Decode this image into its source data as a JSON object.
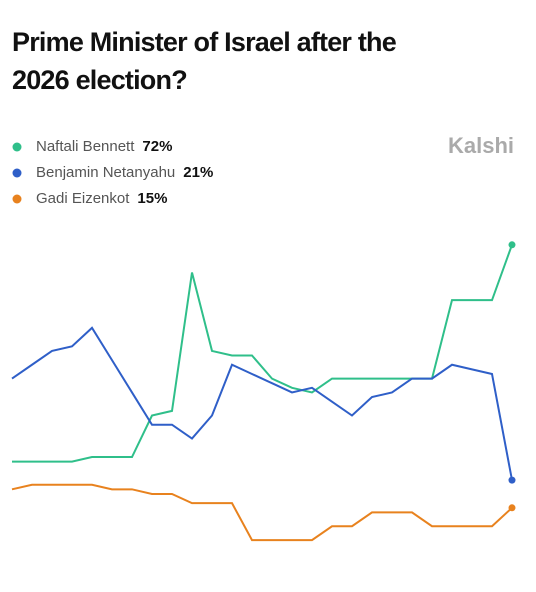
{
  "chart_data": {
    "type": "line",
    "title": "Prime Minister of Israel after the",
    "title_line2": "2026 election?",
    "brand": "Kalshi",
    "series": [
      {
        "name": "Naftali Bennett",
        "legend_value": "72%",
        "color": "#2fbf8a",
        "values": [
          25,
          25,
          25,
          25,
          26,
          26,
          26,
          35,
          36,
          66,
          49,
          48,
          48,
          43,
          41,
          40,
          43,
          43,
          43,
          43,
          43,
          43,
          60,
          60,
          60,
          72
        ]
      },
      {
        "name": "Benjamin Netanyahu",
        "legend_value": "21%",
        "color": "#2f5fc8",
        "values": [
          43,
          46,
          49,
          50,
          54,
          47,
          40,
          33,
          33,
          30,
          35,
          46,
          44,
          42,
          40,
          41,
          38,
          35,
          39,
          40,
          43,
          43,
          46,
          45,
          44,
          21
        ]
      },
      {
        "name": "Gadi Eizenkot",
        "legend_value": "15%",
        "color": "#e8821e",
        "values": [
          19,
          20,
          20,
          20,
          20,
          19,
          19,
          18,
          18,
          16,
          16,
          16,
          8,
          8,
          8,
          8,
          11,
          11,
          14,
          14,
          14,
          11,
          11,
          11,
          11,
          15
        ]
      }
    ]
  }
}
